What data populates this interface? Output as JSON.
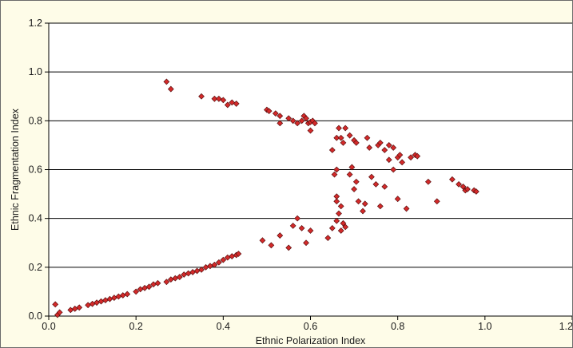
{
  "chart_data": {
    "type": "scatter",
    "title": "",
    "xlabel": "Ethnic Polarization Index",
    "ylabel": "Ethnic Fragmentation Index",
    "xlim": [
      0.0,
      1.2
    ],
    "ylim": [
      0.0,
      1.2
    ],
    "x_ticks": [
      "0.0",
      "0.2",
      "0.4",
      "0.6",
      "0.8",
      "1.0",
      "1.2"
    ],
    "y_ticks": [
      "0.0",
      "0.2",
      "0.4",
      "0.6",
      "0.8",
      "1.0",
      "1.2"
    ],
    "grid": "horizontal",
    "legend": "none",
    "colors": {
      "background": "#fefce8",
      "plot_area": "#ffffff",
      "gridline": "#000000",
      "marker_fill": "#d42a2a",
      "marker_stroke": "#5a1010"
    },
    "series": [
      {
        "points": [
          [
            0.015,
            0.048
          ],
          [
            0.02,
            0.005
          ],
          [
            0.025,
            0.015
          ],
          [
            0.05,
            0.025
          ],
          [
            0.06,
            0.03
          ],
          [
            0.07,
            0.035
          ],
          [
            0.09,
            0.045
          ],
          [
            0.1,
            0.05
          ],
          [
            0.11,
            0.055
          ],
          [
            0.12,
            0.06
          ],
          [
            0.13,
            0.065
          ],
          [
            0.14,
            0.07
          ],
          [
            0.15,
            0.075
          ],
          [
            0.16,
            0.08
          ],
          [
            0.17,
            0.085
          ],
          [
            0.18,
            0.09
          ],
          [
            0.2,
            0.1
          ],
          [
            0.21,
            0.11
          ],
          [
            0.22,
            0.115
          ],
          [
            0.23,
            0.12
          ],
          [
            0.24,
            0.13
          ],
          [
            0.25,
            0.135
          ],
          [
            0.27,
            0.14
          ],
          [
            0.28,
            0.15
          ],
          [
            0.29,
            0.155
          ],
          [
            0.3,
            0.16
          ],
          [
            0.31,
            0.17
          ],
          [
            0.32,
            0.175
          ],
          [
            0.33,
            0.18
          ],
          [
            0.34,
            0.185
          ],
          [
            0.35,
            0.19
          ],
          [
            0.36,
            0.2
          ],
          [
            0.37,
            0.205
          ],
          [
            0.38,
            0.21
          ],
          [
            0.39,
            0.22
          ],
          [
            0.4,
            0.23
          ],
          [
            0.41,
            0.24
          ],
          [
            0.42,
            0.245
          ],
          [
            0.43,
            0.25
          ],
          [
            0.435,
            0.255
          ],
          [
            0.49,
            0.31
          ],
          [
            0.51,
            0.29
          ],
          [
            0.53,
            0.33
          ],
          [
            0.55,
            0.28
          ],
          [
            0.56,
            0.37
          ],
          [
            0.57,
            0.4
          ],
          [
            0.58,
            0.36
          ],
          [
            0.59,
            0.3
          ],
          [
            0.6,
            0.35
          ],
          [
            0.64,
            0.32
          ],
          [
            0.65,
            0.36
          ],
          [
            0.66,
            0.39
          ],
          [
            0.67,
            0.35
          ],
          [
            0.675,
            0.38
          ],
          [
            0.68,
            0.365
          ],
          [
            0.27,
            0.96
          ],
          [
            0.28,
            0.93
          ],
          [
            0.35,
            0.9
          ],
          [
            0.38,
            0.89
          ],
          [
            0.39,
            0.89
          ],
          [
            0.4,
            0.885
          ],
          [
            0.41,
            0.865
          ],
          [
            0.42,
            0.875
          ],
          [
            0.43,
            0.87
          ],
          [
            0.5,
            0.845
          ],
          [
            0.505,
            0.84
          ],
          [
            0.52,
            0.83
          ],
          [
            0.53,
            0.82
          ],
          [
            0.53,
            0.79
          ],
          [
            0.55,
            0.81
          ],
          [
            0.56,
            0.8
          ],
          [
            0.57,
            0.79
          ],
          [
            0.58,
            0.8
          ],
          [
            0.585,
            0.82
          ],
          [
            0.59,
            0.81
          ],
          [
            0.595,
            0.79
          ],
          [
            0.6,
            0.795
          ],
          [
            0.605,
            0.8
          ],
          [
            0.6,
            0.76
          ],
          [
            0.61,
            0.79
          ],
          [
            0.65,
            0.68
          ],
          [
            0.66,
            0.73
          ],
          [
            0.665,
            0.77
          ],
          [
            0.67,
            0.73
          ],
          [
            0.675,
            0.71
          ],
          [
            0.68,
            0.77
          ],
          [
            0.69,
            0.74
          ],
          [
            0.7,
            0.72
          ],
          [
            0.705,
            0.71
          ],
          [
            0.73,
            0.73
          ],
          [
            0.735,
            0.69
          ],
          [
            0.755,
            0.7
          ],
          [
            0.76,
            0.71
          ],
          [
            0.77,
            0.68
          ],
          [
            0.78,
            0.64
          ],
          [
            0.78,
            0.7
          ],
          [
            0.79,
            0.69
          ],
          [
            0.8,
            0.65
          ],
          [
            0.805,
            0.66
          ],
          [
            0.81,
            0.63
          ],
          [
            0.83,
            0.65
          ],
          [
            0.84,
            0.66
          ],
          [
            0.845,
            0.655
          ],
          [
            0.655,
            0.58
          ],
          [
            0.66,
            0.6
          ],
          [
            0.66,
            0.47
          ],
          [
            0.66,
            0.49
          ],
          [
            0.665,
            0.42
          ],
          [
            0.67,
            0.45
          ],
          [
            0.69,
            0.58
          ],
          [
            0.695,
            0.61
          ],
          [
            0.7,
            0.52
          ],
          [
            0.705,
            0.55
          ],
          [
            0.71,
            0.47
          ],
          [
            0.72,
            0.43
          ],
          [
            0.725,
            0.46
          ],
          [
            0.74,
            0.57
          ],
          [
            0.75,
            0.54
          ],
          [
            0.76,
            0.45
          ],
          [
            0.77,
            0.53
          ],
          [
            0.79,
            0.6
          ],
          [
            0.8,
            0.48
          ],
          [
            0.82,
            0.44
          ],
          [
            0.87,
            0.55
          ],
          [
            0.89,
            0.47
          ],
          [
            0.925,
            0.56
          ],
          [
            0.94,
            0.54
          ],
          [
            0.95,
            0.53
          ],
          [
            0.955,
            0.515
          ],
          [
            0.96,
            0.52
          ],
          [
            0.975,
            0.515
          ],
          [
            0.98,
            0.51
          ]
        ]
      }
    ]
  }
}
